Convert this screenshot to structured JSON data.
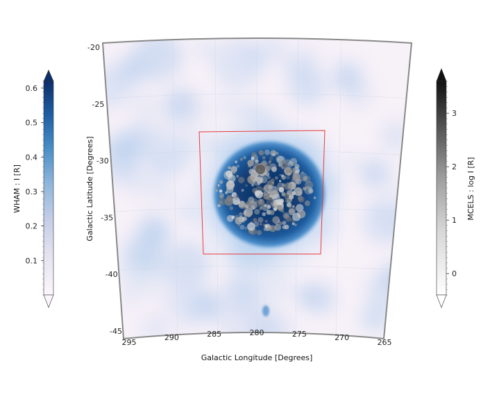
{
  "chart_data": {
    "type": "heatmap",
    "title": "",
    "projection": "curved sky projection (galactic coordinates)",
    "xlabel": "Galactic Longitude [Degrees]",
    "ylabel": "Galactic Latitude [Degrees]",
    "x_ticks": [
      295,
      290,
      285,
      280,
      275,
      270,
      265
    ],
    "y_ticks": [
      -20,
      -25,
      -30,
      -35,
      -40,
      -45
    ],
    "xlim": [
      295,
      265
    ],
    "ylim": [
      -45,
      -20
    ],
    "grid": true,
    "layers": [
      {
        "name": "WHAM",
        "colormap": "white-to-blue",
        "colorbar_label": "WHAM : I [R]",
        "colorbar_side": "left",
        "colorbar_ticks": [
          0.1,
          0.2,
          0.3,
          0.4,
          0.5,
          0.6
        ],
        "range": [
          0.0,
          0.62
        ],
        "extend": "both"
      },
      {
        "name": "MCELS",
        "colormap": "white-to-black",
        "colorbar_label": "MCELS : log I [R]",
        "colorbar_side": "right",
        "colorbar_ticks": [
          0,
          1,
          2,
          3
        ],
        "range": [
          -0.4,
          3.6
        ],
        "extend": "both"
      }
    ],
    "emission_peak": {
      "longitude": 280,
      "latitude": -33,
      "layer": "WHAM"
    },
    "compact_source": {
      "longitude": 280,
      "latitude": -43.5
    },
    "overlay_box": {
      "color": "#e8383b",
      "corners_lon_lat": [
        [
          283.5,
          -27.6
        ],
        [
          277,
          -27.6
        ],
        [
          277.6,
          -37.8
        ],
        [
          283,
          -37.8
        ]
      ]
    }
  }
}
